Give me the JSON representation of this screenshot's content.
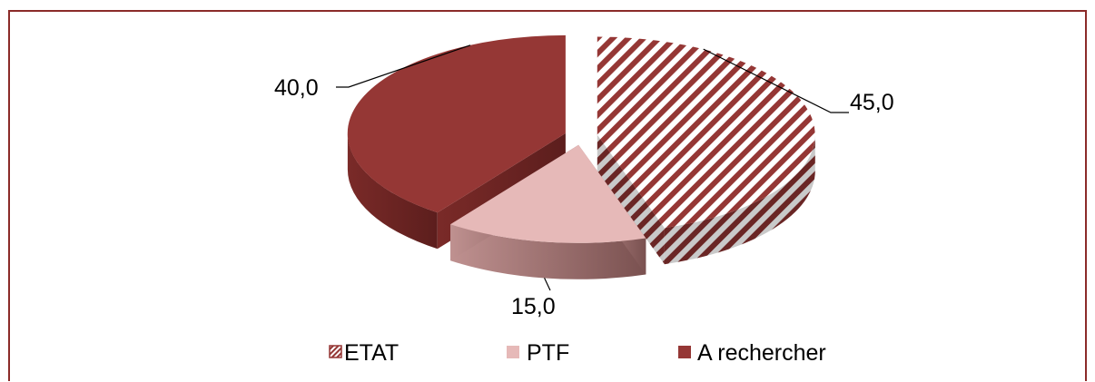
{
  "chart_data": {
    "type": "pie",
    "style": "3d-exploded",
    "categories": [
      "ETAT",
      "PTF",
      "A rechercher"
    ],
    "values": [
      45.0,
      15.0,
      40.0
    ],
    "data_labels": [
      "45,0",
      "15,0",
      "40,0"
    ],
    "legend": {
      "position": "bottom",
      "entries": [
        "ETAT",
        "PTF",
        "A rechercher"
      ]
    },
    "colors": {
      "ETAT": "#953735",
      "ETAT_pattern": "diagonal-stripes",
      "PTF": "#e6b9b8",
      "A rechercher": "#953735",
      "frame_border": "#8b2b29"
    }
  }
}
